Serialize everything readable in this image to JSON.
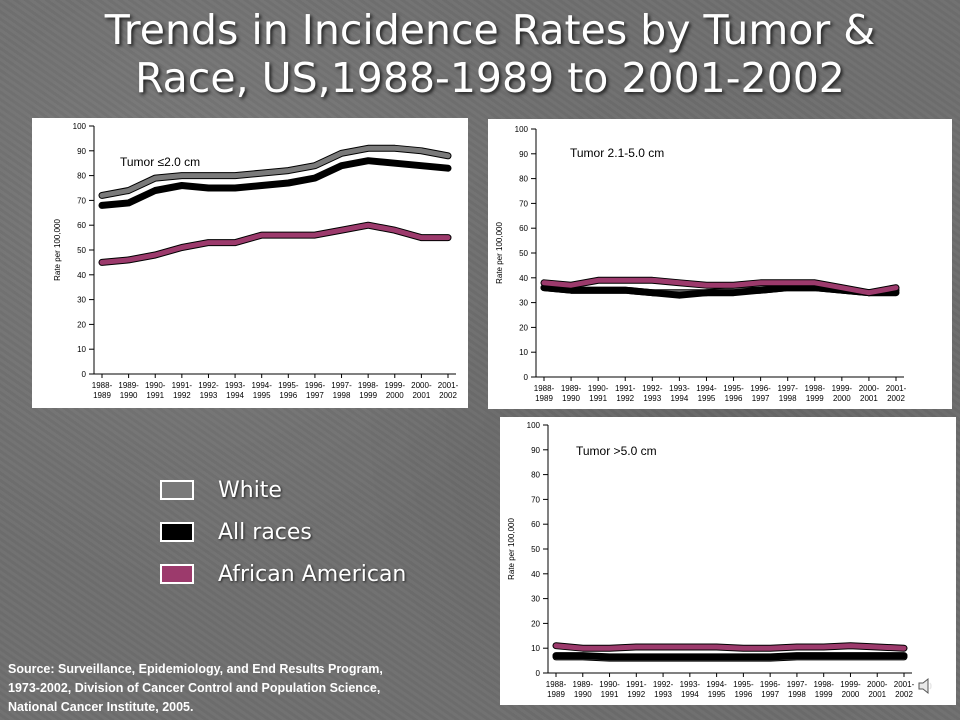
{
  "slide": {
    "title_line1": "Trends in Incidence Rates by Tumor &",
    "title_line2": "Race, US,1988-1989 to 2001-2002",
    "source_line1": "Source:  Surveillance, Epidemiology, and End Results Program,",
    "source_line2": "1973-2002, Division of Cancer Control and Population Science,",
    "source_line3": "National Cancer Institute, 2005."
  },
  "legend": [
    {
      "label": "White",
      "color": "#7a7a7a"
    },
    {
      "label": "All races",
      "color": "#000000"
    },
    {
      "label": "African American",
      "color": "#9c3a6c"
    }
  ],
  "colors": {
    "white_series": "#7a7a7a",
    "all_races_series": "#000000",
    "african_american_series": "#9c3a6c",
    "background": "#6f6f6f"
  },
  "icons": [
    "speaker-icon"
  ],
  "chart_data": [
    {
      "type": "line",
      "annotation": "Tumor ≤2.0 cm",
      "ylabel": "Rate per 100,000",
      "ylim": [
        0,
        100
      ],
      "yticks": [
        0,
        10,
        20,
        30,
        40,
        50,
        60,
        70,
        80,
        90,
        100
      ],
      "categories": [
        [
          "1988-",
          "1989"
        ],
        [
          "1989-",
          "1990"
        ],
        [
          "1990-",
          "1991"
        ],
        [
          "1991-",
          "1992"
        ],
        [
          "1992-",
          "1993"
        ],
        [
          "1993-",
          "1994"
        ],
        [
          "1994-",
          "1995"
        ],
        [
          "1995-",
          "1996"
        ],
        [
          "1996-",
          "1997"
        ],
        [
          "1997-",
          "1998"
        ],
        [
          "1998-",
          "1999"
        ],
        [
          "1999-",
          "2000"
        ],
        [
          "2000-",
          "2001"
        ],
        [
          "2001-",
          "2002"
        ]
      ],
      "series": [
        {
          "name": "White",
          "values": [
            72,
            74,
            79,
            80,
            80,
            80,
            81,
            82,
            84,
            89,
            91,
            91,
            90,
            88
          ]
        },
        {
          "name": "All races",
          "values": [
            68,
            69,
            74,
            76,
            75,
            75,
            76,
            77,
            79,
            84,
            86,
            85,
            84,
            83
          ]
        },
        {
          "name": "African American",
          "values": [
            45,
            46,
            48,
            51,
            53,
            53,
            56,
            56,
            56,
            58,
            60,
            58,
            55,
            55
          ]
        }
      ]
    },
    {
      "type": "line",
      "annotation": "Tumor 2.1-5.0 cm",
      "ylabel": "Rate per 100,000",
      "ylim": [
        0,
        100
      ],
      "yticks": [
        0,
        10,
        20,
        30,
        40,
        50,
        60,
        70,
        80,
        90,
        100
      ],
      "categories": [
        [
          "1988-",
          "1989"
        ],
        [
          "1989-",
          "1990"
        ],
        [
          "1990-",
          "1991"
        ],
        [
          "1991-",
          "1992"
        ],
        [
          "1992-",
          "1993"
        ],
        [
          "1993-",
          "1994"
        ],
        [
          "1994-",
          "1995"
        ],
        [
          "1995-",
          "1996"
        ],
        [
          "1996-",
          "1997"
        ],
        [
          "1997-",
          "1998"
        ],
        [
          "1998-",
          "1999"
        ],
        [
          "1999-",
          "2000"
        ],
        [
          "2000-",
          "2001"
        ],
        [
          "2001-",
          "2002"
        ]
      ],
      "series": [
        {
          "name": "White",
          "values": [
            36,
            35,
            35,
            35,
            34,
            34,
            34,
            35,
            35,
            36,
            36,
            35,
            34,
            35
          ]
        },
        {
          "name": "All races",
          "values": [
            36,
            35,
            35,
            35,
            34,
            33,
            34,
            34,
            35,
            36,
            36,
            35,
            34,
            34
          ]
        },
        {
          "name": "African American",
          "values": [
            38,
            37,
            39,
            39,
            39,
            38,
            37,
            37,
            38,
            38,
            38,
            36,
            34,
            36
          ]
        }
      ]
    },
    {
      "type": "line",
      "annotation": "Tumor >5.0 cm",
      "ylabel": "Rate per 100,000",
      "ylim": [
        0,
        100
      ],
      "yticks": [
        0,
        10,
        20,
        30,
        40,
        50,
        60,
        70,
        80,
        90,
        100
      ],
      "categories": [
        [
          "1988-",
          "1989"
        ],
        [
          "1989-",
          "1990"
        ],
        [
          "1990-",
          "1991"
        ],
        [
          "1991-",
          "1992"
        ],
        [
          "1992-",
          "1993"
        ],
        [
          "1993-",
          "1994"
        ],
        [
          "1994-",
          "1995"
        ],
        [
          "1995-",
          "1996"
        ],
        [
          "1996-",
          "1997"
        ],
        [
          "1997-",
          "1998"
        ],
        [
          "1998-",
          "1999"
        ],
        [
          "1999-",
          "2000"
        ],
        [
          "2000-",
          "2001"
        ],
        [
          "2001-",
          "2002"
        ]
      ],
      "series": [
        {
          "name": "White",
          "values": [
            6.5,
            6.5,
            6,
            6,
            6,
            6,
            6,
            6,
            6,
            6.5,
            6.5,
            6.5,
            6.5,
            6.5
          ]
        },
        {
          "name": "All races",
          "values": [
            7,
            7,
            6.5,
            6.5,
            6.5,
            6.5,
            6.5,
            6.5,
            6.5,
            7,
            7,
            7,
            7,
            7
          ]
        },
        {
          "name": "African American",
          "values": [
            11,
            10,
            10,
            10.5,
            10.5,
            10.5,
            10.5,
            10,
            10,
            10.5,
            10.5,
            11,
            10.5,
            10
          ]
        }
      ]
    }
  ]
}
